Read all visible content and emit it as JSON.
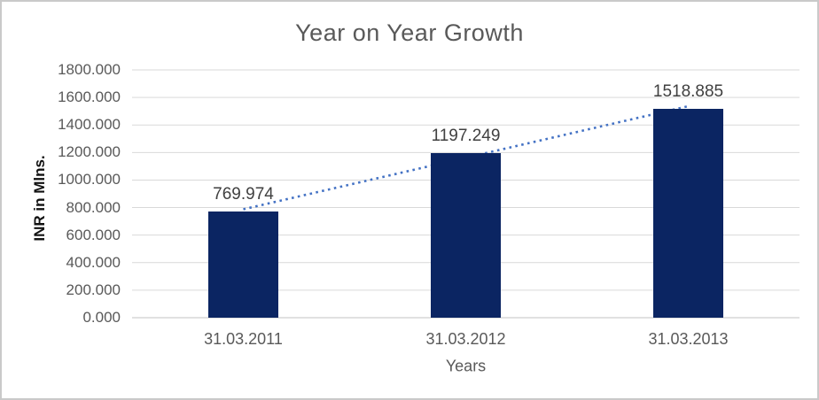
{
  "chart": {
    "title": "Year on Year Growth",
    "y_axis_title": "INR in Mlns.",
    "x_axis_title": "Years"
  },
  "chart_data": {
    "type": "bar",
    "title": "Year on Year Growth",
    "xlabel": "Years",
    "ylabel": "INR in Mlns.",
    "categories": [
      "31.03.2011",
      "31.03.2012",
      "31.03.2013"
    ],
    "values": [
      769.974,
      1197.249,
      1518.885
    ],
    "data_labels": [
      "769.974",
      "1197.249",
      "1518.885"
    ],
    "ylim": [
      0,
      1800
    ],
    "ytick_step": 200,
    "ytick_labels": [
      "0.000",
      "200.000",
      "400.000",
      "600.000",
      "800.000",
      "1000.000",
      "1200.000",
      "1400.000",
      "1600.000",
      "1800.000"
    ],
    "grid": true,
    "legend": "none",
    "trendline": {
      "type": "linear",
      "style": "dotted"
    },
    "colors": {
      "bar_fill": "#0b2562",
      "trendline": "#4472c4",
      "gridline": "#d9d9d9",
      "axis_line": "#c3c3c3",
      "title_text": "#595959",
      "tick_text": "#595959",
      "data_label_text": "#404040"
    }
  }
}
